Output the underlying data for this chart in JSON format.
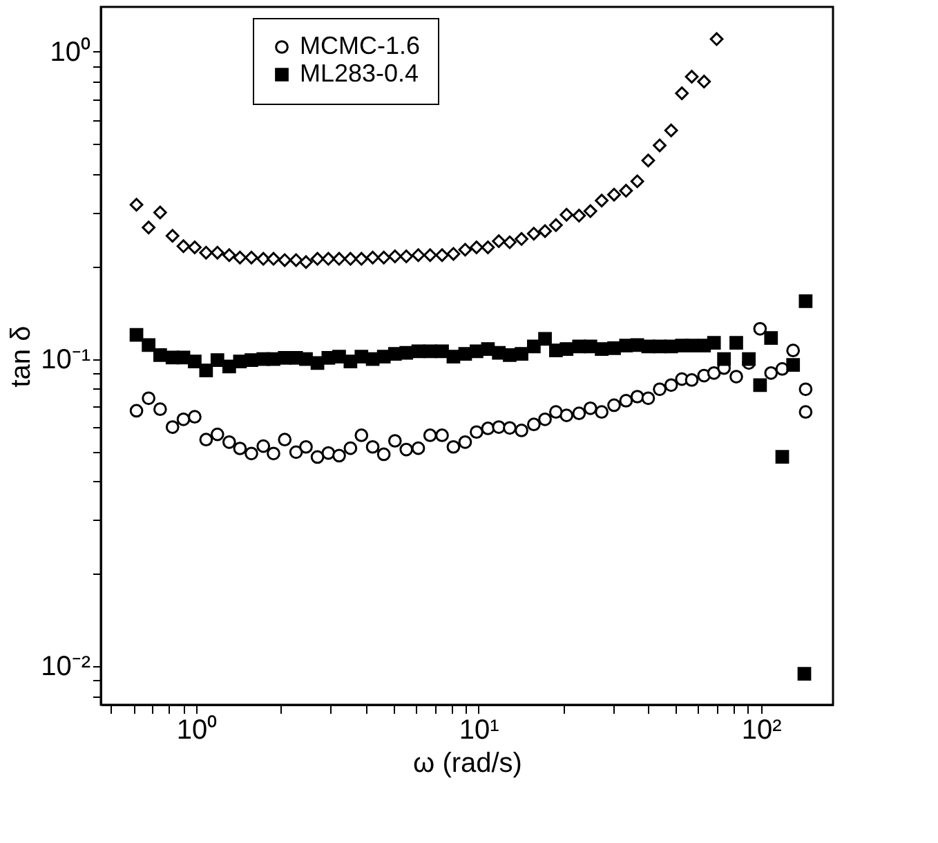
{
  "chart_data": {
    "type": "scatter",
    "xlabel": "ω (rad/s)",
    "ylabel": "tan δ",
    "log": "xy",
    "xlim": [
      0.46,
      180
    ],
    "ylim": [
      0.0075,
      1.4
    ],
    "xticks": [
      {
        "value": 0.5,
        "label": null
      },
      {
        "value": 0.6,
        "label": null
      },
      {
        "value": 0.7,
        "label": null
      },
      {
        "value": 0.8,
        "label": null
      },
      {
        "value": 0.9,
        "label": null
      },
      {
        "value": 1,
        "label": "10⁰"
      },
      {
        "value": 2,
        "label": null
      },
      {
        "value": 3,
        "label": null
      },
      {
        "value": 4,
        "label": null
      },
      {
        "value": 5,
        "label": null
      },
      {
        "value": 6,
        "label": null
      },
      {
        "value": 7,
        "label": null
      },
      {
        "value": 8,
        "label": null
      },
      {
        "value": 9,
        "label": null
      },
      {
        "value": 10,
        "label": "10¹"
      },
      {
        "value": 20,
        "label": null
      },
      {
        "value": 30,
        "label": null
      },
      {
        "value": 40,
        "label": null
      },
      {
        "value": 50,
        "label": null
      },
      {
        "value": 60,
        "label": null
      },
      {
        "value": 70,
        "label": null
      },
      {
        "value": 80,
        "label": null
      },
      {
        "value": 90,
        "label": null
      },
      {
        "value": 100,
        "label": "10²"
      }
    ],
    "yticks": [
      {
        "value": 0.008,
        "label": null
      },
      {
        "value": 0.009,
        "label": null
      },
      {
        "value": 0.01,
        "label": "10⁻²"
      },
      {
        "value": 0.02,
        "label": null
      },
      {
        "value": 0.03,
        "label": null
      },
      {
        "value": 0.04,
        "label": null
      },
      {
        "value": 0.05,
        "label": null
      },
      {
        "value": 0.06,
        "label": null
      },
      {
        "value": 0.07,
        "label": null
      },
      {
        "value": 0.08,
        "label": null
      },
      {
        "value": 0.09,
        "label": null
      },
      {
        "value": 0.1,
        "label": "10⁻¹"
      },
      {
        "value": 0.2,
        "label": null
      },
      {
        "value": 0.3,
        "label": null
      },
      {
        "value": 0.4,
        "label": null
      },
      {
        "value": 0.5,
        "label": null
      },
      {
        "value": 0.6,
        "label": null
      },
      {
        "value": 0.7,
        "label": null
      },
      {
        "value": 0.8,
        "label": null
      },
      {
        "value": 0.9,
        "label": null
      },
      {
        "value": 1,
        "label": "10⁰"
      }
    ],
    "grid": false,
    "legend": "top left",
    "series": [
      {
        "name": "MCMC-1.6",
        "color": "#000000",
        "marker": "circle",
        "x": [
          0.615,
          0.679,
          0.746,
          0.825,
          0.902,
          0.989,
          1.085,
          1.19,
          1.31,
          1.43,
          1.57,
          1.73,
          1.88,
          2.06,
          2.26,
          2.45,
          2.69,
          2.94,
          3.21,
          3.52,
          3.85,
          4.22,
          4.62,
          5.06,
          5.55,
          6.12,
          6.74,
          7.43,
          8.15,
          8.97,
          9.84,
          10.8,
          11.8,
          12.9,
          14.2,
          15.7,
          17.2,
          18.8,
          20.5,
          22.7,
          24.9,
          27.3,
          30.2,
          33.3,
          36.5,
          39.9,
          43.8,
          48.1,
          52.5,
          56.9,
          62.9,
          68.2,
          74,
          81.8,
          90.6,
          99.3,
          108.6,
          119,
          130,
          144,
          144
        ],
        "values": [
          0.0679,
          0.0746,
          0.0687,
          0.0601,
          0.0637,
          0.0649,
          0.0547,
          0.0569,
          0.0537,
          0.0512,
          0.0493,
          0.0521,
          0.0493,
          0.0547,
          0.0498,
          0.0518,
          0.048,
          0.0495,
          0.0485,
          0.0513,
          0.0565,
          0.0518,
          0.049,
          0.0542,
          0.0508,
          0.0513,
          0.0565,
          0.0565,
          0.0518,
          0.0537,
          0.0579,
          0.0595,
          0.0601,
          0.0597,
          0.0586,
          0.0613,
          0.0637,
          0.0673,
          0.0656,
          0.0666,
          0.0692,
          0.0673,
          0.0708,
          0.0732,
          0.0755,
          0.0746,
          0.0798,
          0.0823,
          0.0861,
          0.0855,
          0.0884,
          0.0901,
          0.0935,
          0.0877,
          0.0971,
          0.1255,
          0.0901,
          0.0929,
          0.1067,
          0.0798,
          0.0673
        ]
      },
      {
        "name": "ML283-0.4",
        "color": "#000000",
        "marker": "square",
        "x": [
          0.615,
          0.679,
          0.746,
          0.825,
          0.902,
          0.989,
          1.085,
          1.19,
          1.31,
          1.43,
          1.57,
          1.73,
          1.88,
          2.06,
          2.26,
          2.45,
          2.69,
          2.94,
          3.21,
          3.52,
          3.85,
          4.22,
          4.62,
          5.06,
          5.55,
          6.12,
          6.74,
          7.43,
          8.15,
          8.97,
          9.84,
          10.8,
          11.8,
          12.9,
          14.2,
          15.7,
          17.2,
          18.8,
          20.5,
          22.7,
          24.9,
          27.3,
          30.2,
          33.3,
          36.5,
          39.9,
          43.8,
          48.1,
          52.5,
          56.9,
          62.9,
          68.2,
          74,
          81.8,
          90.6,
          99.3,
          108.6,
          119,
          130,
          144,
          142.5
        ],
        "values": [
          0.1199,
          0.1111,
          0.1031,
          0.1012,
          0.1012,
          0.0982,
          0.0918,
          0.0993,
          0.0946,
          0.0982,
          0.0993,
          0.1,
          0.1,
          0.1009,
          0.1009,
          0.1,
          0.0971,
          0.1009,
          0.1019,
          0.0982,
          0.1019,
          0.1,
          0.1019,
          0.104,
          0.1048,
          0.106,
          0.106,
          0.106,
          0.1019,
          0.104,
          0.106,
          0.1079,
          0.1048,
          0.1031,
          0.104,
          0.11,
          0.1164,
          0.1067,
          0.1079,
          0.11,
          0.11,
          0.1079,
          0.1086,
          0.1107,
          0.1111,
          0.11,
          0.11,
          0.11,
          0.1107,
          0.1107,
          0.1107,
          0.113,
          0.1,
          0.113,
          0.1,
          0.0823,
          0.1172,
          0.0481,
          0.0957,
          0.1543,
          0.00946
        ]
      },
      {
        "color": "#000000",
        "marker": "diamond",
        "x": [
          0.615,
          0.679,
          0.746,
          0.825,
          0.902,
          0.989,
          1.085,
          1.19,
          1.31,
          1.43,
          1.57,
          1.73,
          1.88,
          2.06,
          2.26,
          2.45,
          2.69,
          2.94,
          3.21,
          3.52,
          3.85,
          4.22,
          4.62,
          5.06,
          5.55,
          6.12,
          6.74,
          7.43,
          8.15,
          8.97,
          9.84,
          10.8,
          11.8,
          12.9,
          14.2,
          15.7,
          17.2,
          18.8,
          20.5,
          22.7,
          24.9,
          27.3,
          30.2,
          33.3,
          36.5,
          39.9,
          43.8,
          48.1,
          52.5,
          56.9,
          62.9,
          69.7
        ],
        "values": [
          0.318,
          0.268,
          0.3,
          0.252,
          0.233,
          0.231,
          0.222,
          0.222,
          0.218,
          0.214,
          0.214,
          0.212,
          0.212,
          0.21,
          0.21,
          0.207,
          0.212,
          0.212,
          0.212,
          0.212,
          0.212,
          0.214,
          0.214,
          0.216,
          0.216,
          0.218,
          0.218,
          0.218,
          0.22,
          0.227,
          0.231,
          0.231,
          0.242,
          0.24,
          0.246,
          0.256,
          0.261,
          0.273,
          0.295,
          0.293,
          0.303,
          0.328,
          0.343,
          0.353,
          0.379,
          0.443,
          0.496,
          0.555,
          0.733,
          0.83,
          0.8,
          1.1
        ]
      }
    ]
  }
}
